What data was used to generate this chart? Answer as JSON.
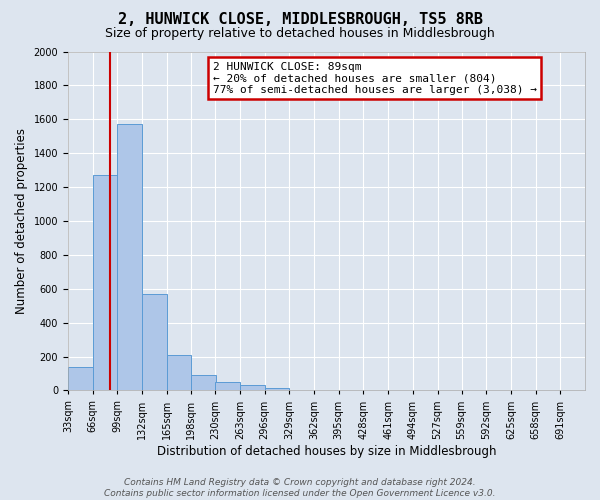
{
  "title": "2, HUNWICK CLOSE, MIDDLESBROUGH, TS5 8RB",
  "subtitle": "Size of property relative to detached houses in Middlesbrough",
  "xlabel": "Distribution of detached houses by size in Middlesbrough",
  "ylabel": "Number of detached properties",
  "bin_labels": [
    "33sqm",
    "66sqm",
    "99sqm",
    "132sqm",
    "165sqm",
    "198sqm",
    "230sqm",
    "263sqm",
    "296sqm",
    "329sqm",
    "362sqm",
    "395sqm",
    "428sqm",
    "461sqm",
    "494sqm",
    "527sqm",
    "559sqm",
    "592sqm",
    "625sqm",
    "658sqm",
    "691sqm"
  ],
  "bar_values": [
    140,
    1270,
    1570,
    570,
    210,
    90,
    50,
    30,
    15,
    0,
    0,
    0,
    0,
    0,
    0,
    0,
    0,
    0,
    0,
    0
  ],
  "bar_color": "#aec6e8",
  "bar_edge_color": "#5b9bd5",
  "ylim": [
    0,
    2000
  ],
  "yticks": [
    0,
    200,
    400,
    600,
    800,
    1000,
    1200,
    1400,
    1600,
    1800,
    2000
  ],
  "property_line_x": 89,
  "bin_edges_values": [
    33,
    66,
    99,
    132,
    165,
    198,
    230,
    263,
    296,
    329,
    362,
    395,
    428,
    461,
    494,
    527,
    559,
    592,
    625,
    658,
    691
  ],
  "bin_width": 33,
  "annotation_text": "2 HUNWICK CLOSE: 89sqm\n← 20% of detached houses are smaller (804)\n77% of semi-detached houses are larger (3,038) →",
  "annotation_box_color": "#ffffff",
  "annotation_box_edge": "#cc0000",
  "red_line_color": "#cc0000",
  "footer_line1": "Contains HM Land Registry data © Crown copyright and database right 2024.",
  "footer_line2": "Contains public sector information licensed under the Open Government Licence v3.0.",
  "background_color": "#dde5ef",
  "plot_bg_color": "#dde5ef",
  "title_fontsize": 11,
  "subtitle_fontsize": 9,
  "axis_label_fontsize": 8.5,
  "tick_fontsize": 7,
  "annotation_fontsize": 8,
  "footer_fontsize": 6.5
}
